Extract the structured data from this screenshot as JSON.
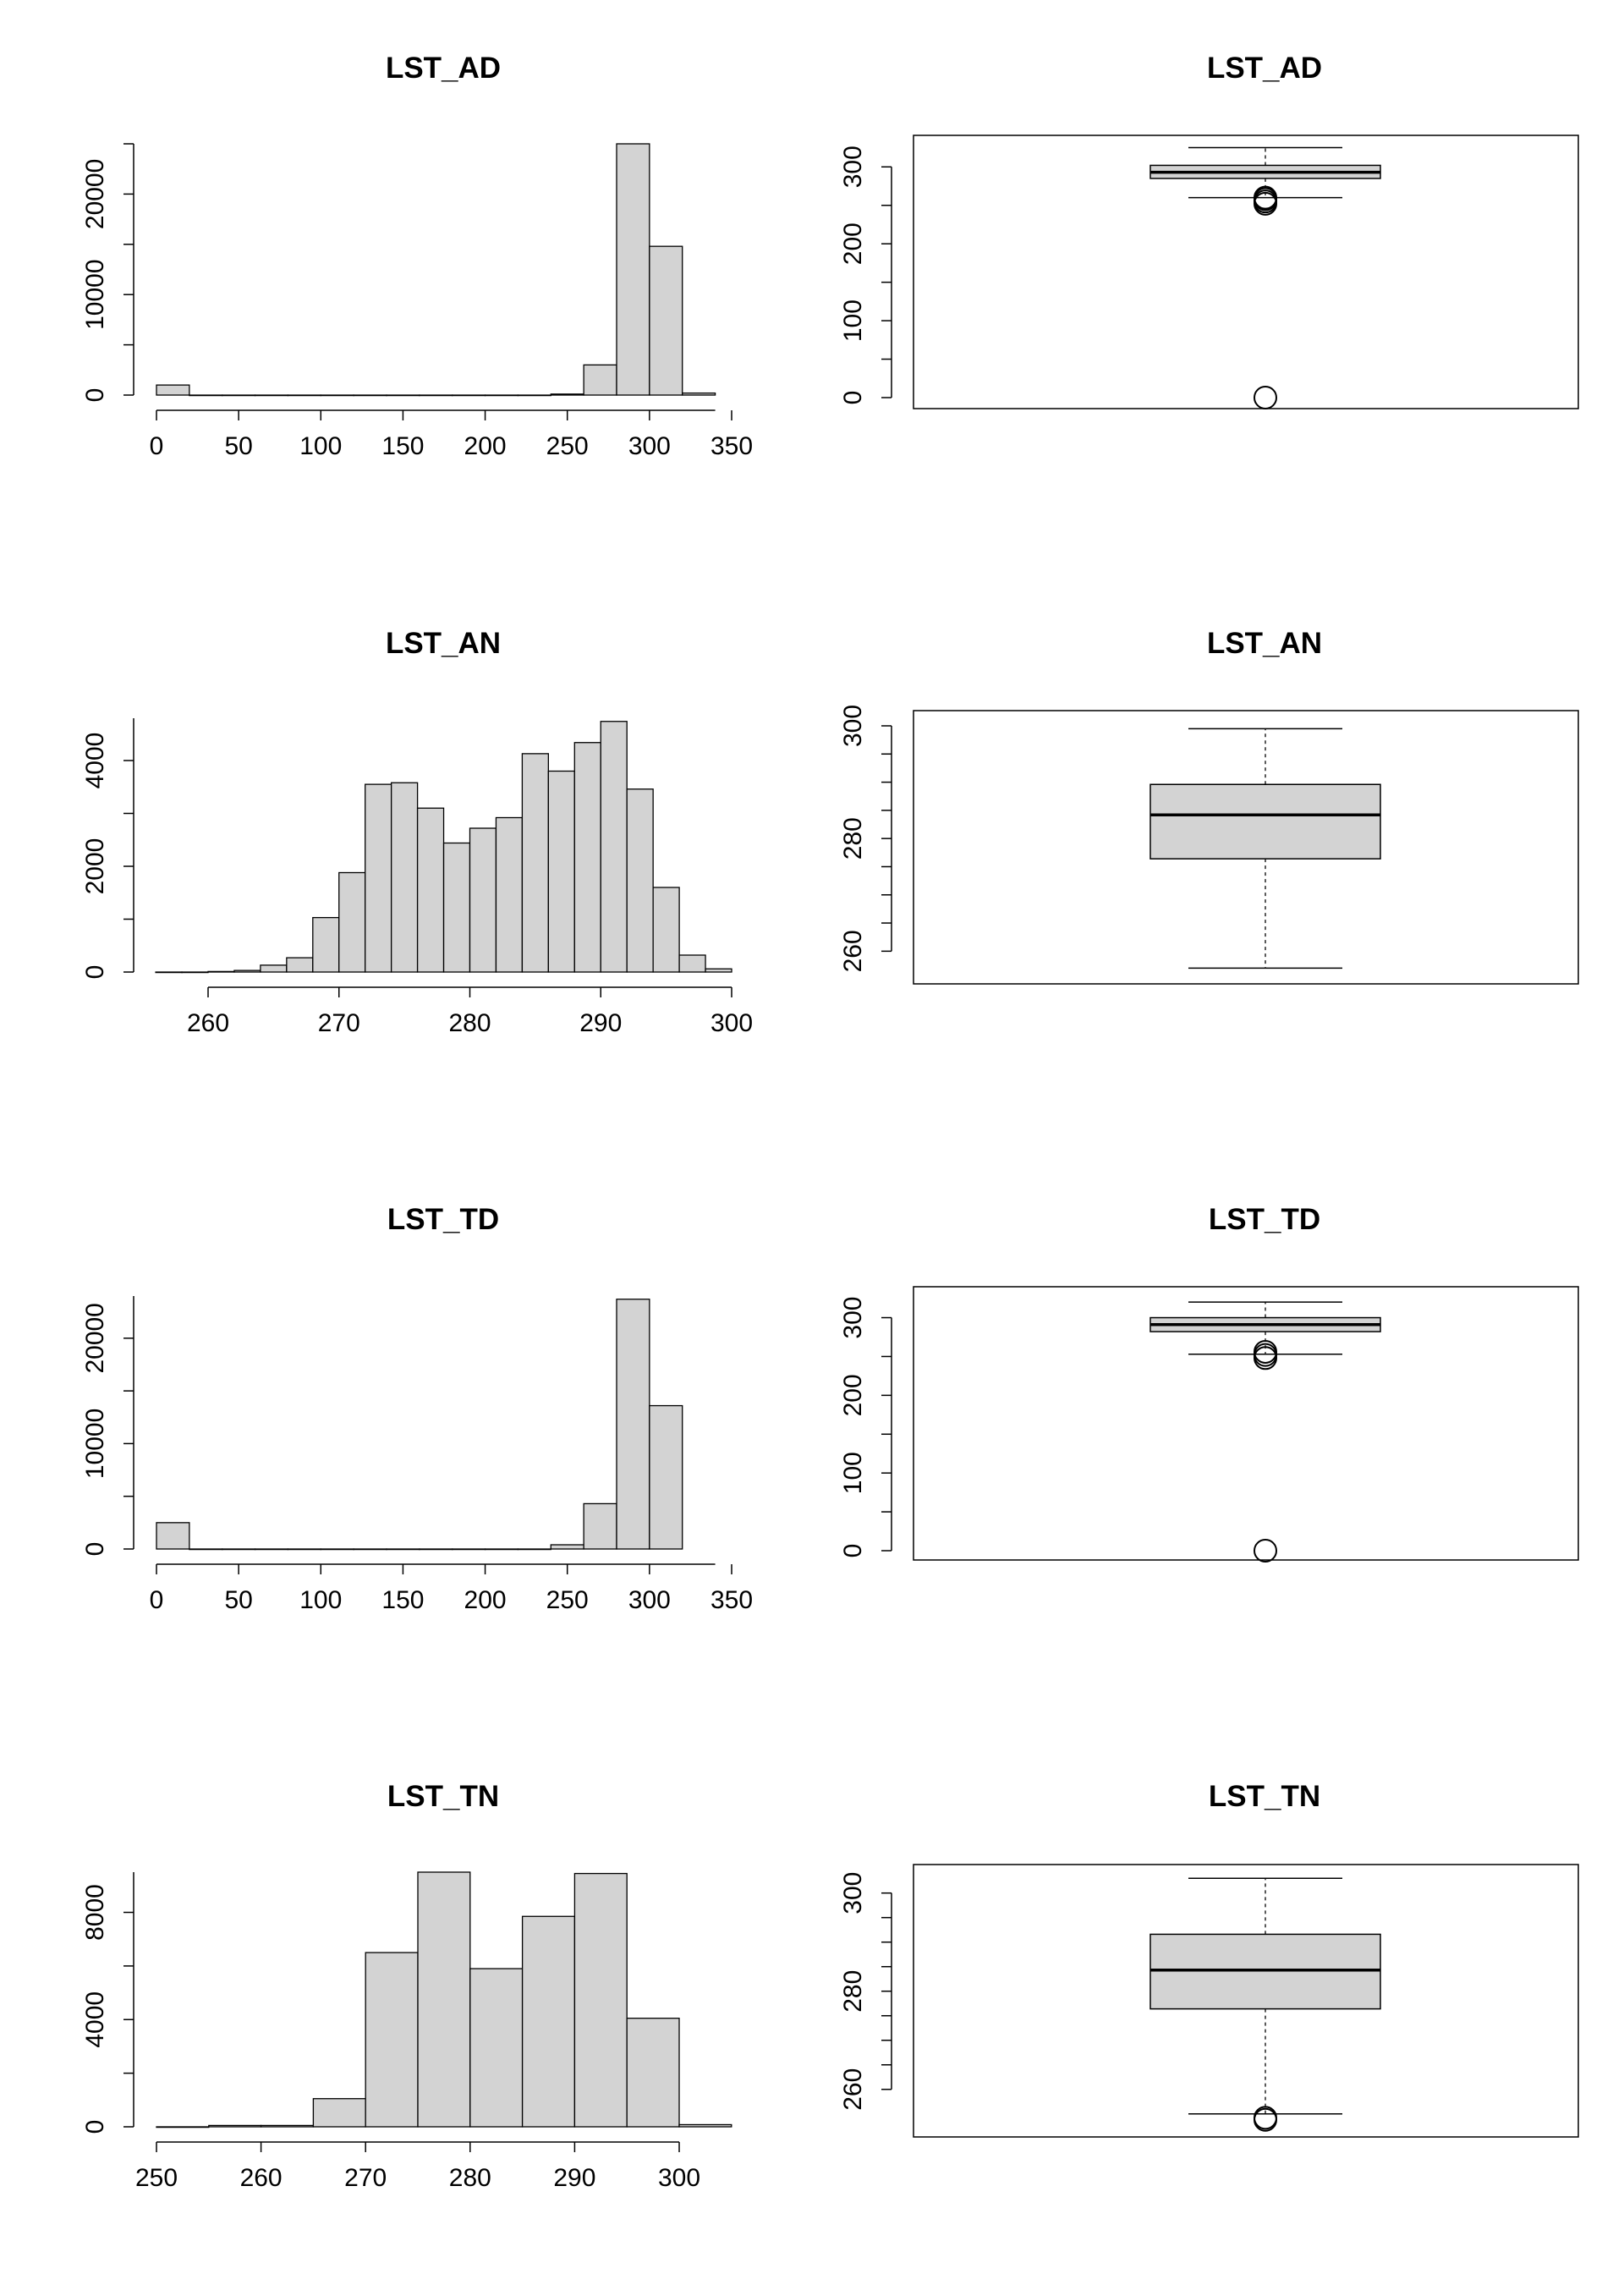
{
  "chart_data": [
    {
      "type": "histogram",
      "title": "LST_AD",
      "xlim": [
        0,
        350
      ],
      "ylim": [
        0,
        25000
      ],
      "x_ticks": [
        0,
        50,
        100,
        150,
        200,
        250,
        300,
        350
      ],
      "x_tick_labels": [
        "0",
        "50",
        "100",
        "150",
        "200",
        "250",
        "300",
        "350"
      ],
      "y_ticks": [
        0,
        10000,
        20000
      ],
      "y_tick_labels": [
        "0",
        "10000",
        "20000"
      ],
      "bin_width": 20,
      "bins": [
        {
          "x0": 0,
          "x1": 20,
          "count": 1000
        },
        {
          "x0": 20,
          "x1": 40,
          "count": 0
        },
        {
          "x0": 40,
          "x1": 60,
          "count": 0
        },
        {
          "x0": 60,
          "x1": 80,
          "count": 0
        },
        {
          "x0": 80,
          "x1": 100,
          "count": 0
        },
        {
          "x0": 100,
          "x1": 120,
          "count": 0
        },
        {
          "x0": 120,
          "x1": 140,
          "count": 0
        },
        {
          "x0": 140,
          "x1": 160,
          "count": 0
        },
        {
          "x0": 160,
          "x1": 180,
          "count": 0
        },
        {
          "x0": 180,
          "x1": 200,
          "count": 0
        },
        {
          "x0": 200,
          "x1": 220,
          "count": 0
        },
        {
          "x0": 220,
          "x1": 240,
          "count": 0
        },
        {
          "x0": 240,
          "x1": 260,
          "count": 100
        },
        {
          "x0": 260,
          "x1": 280,
          "count": 3000
        },
        {
          "x0": 280,
          "x1": 300,
          "count": 25000
        },
        {
          "x0": 300,
          "x1": 320,
          "count": 14800
        },
        {
          "x0": 320,
          "x1": 340,
          "count": 200
        }
      ],
      "ticks_extend": 340
    },
    {
      "type": "boxplot",
      "title": "LST_AD",
      "ylim": [
        0,
        330
      ],
      "y_ticks": [
        0,
        100,
        200,
        300
      ],
      "y_tick_labels": [
        "0",
        "100",
        "200",
        "300"
      ],
      "whisker_low": 260,
      "q1": 285,
      "median": 293,
      "q3": 302,
      "whisker_high": 325,
      "outliers": [
        0,
        252,
        255,
        258,
        260
      ]
    },
    {
      "type": "histogram",
      "title": "LST_AN",
      "xlim": [
        260,
        300
      ],
      "ylim": [
        0,
        4800
      ],
      "x_ticks": [
        260,
        270,
        280,
        290,
        300
      ],
      "x_tick_labels": [
        "260",
        "270",
        "280",
        "290",
        "300"
      ],
      "y_ticks": [
        0,
        2000,
        4000
      ],
      "y_tick_labels": [
        "0",
        "2000",
        "4000"
      ],
      "bin_width": 2,
      "bins": [
        {
          "x0": 256,
          "x1": 258,
          "count": 0
        },
        {
          "x0": 258,
          "x1": 260,
          "count": 0
        },
        {
          "x0": 260,
          "x1": 262,
          "count": 10
        },
        {
          "x0": 262,
          "x1": 264,
          "count": 30
        },
        {
          "x0": 264,
          "x1": 266,
          "count": 130
        },
        {
          "x0": 266,
          "x1": 268,
          "count": 270
        },
        {
          "x0": 268,
          "x1": 270,
          "count": 1030
        },
        {
          "x0": 270,
          "x1": 272,
          "count": 1880
        },
        {
          "x0": 272,
          "x1": 274,
          "count": 3550
        },
        {
          "x0": 274,
          "x1": 276,
          "count": 3580
        },
        {
          "x0": 276,
          "x1": 278,
          "count": 3100
        },
        {
          "x0": 278,
          "x1": 280,
          "count": 2440
        },
        {
          "x0": 280,
          "x1": 282,
          "count": 2720
        },
        {
          "x0": 282,
          "x1": 284,
          "count": 2920
        },
        {
          "x0": 284,
          "x1": 286,
          "count": 4130
        },
        {
          "x0": 286,
          "x1": 288,
          "count": 3800
        },
        {
          "x0": 288,
          "x1": 290,
          "count": 4340
        },
        {
          "x0": 290,
          "x1": 292,
          "count": 4740
        },
        {
          "x0": 292,
          "x1": 294,
          "count": 3460
        },
        {
          "x0": 294,
          "x1": 296,
          "count": 1600
        },
        {
          "x0": 296,
          "x1": 298,
          "count": 320
        },
        {
          "x0": 298,
          "x1": 300,
          "count": 60
        }
      ],
      "ticks_extend": 300
    },
    {
      "type": "boxplot",
      "title": "LST_AN",
      "ylim": [
        255.4,
        301.5
      ],
      "y_ticks": [
        260,
        270,
        280,
        290,
        300
      ],
      "y_tick_labels": [
        "260",
        "",
        "280",
        "",
        "300"
      ],
      "whisker_low": 257,
      "q1": 276.4,
      "median": 284.2,
      "q3": 289.6,
      "whisker_high": 299.5,
      "outliers": []
    },
    {
      "type": "histogram",
      "title": "LST_TD",
      "xlim": [
        0,
        350
      ],
      "ylim": [
        0,
        24000
      ],
      "x_ticks": [
        0,
        50,
        100,
        150,
        200,
        250,
        300,
        350
      ],
      "x_tick_labels": [
        "0",
        "50",
        "100",
        "150",
        "200",
        "250",
        "300",
        "350"
      ],
      "y_ticks": [
        0,
        10000,
        20000
      ],
      "y_tick_labels": [
        "0",
        "10000",
        "20000"
      ],
      "bin_width": 20,
      "bins": [
        {
          "x0": 0,
          "x1": 20,
          "count": 2500
        },
        {
          "x0": 20,
          "x1": 40,
          "count": 0
        },
        {
          "x0": 40,
          "x1": 60,
          "count": 0
        },
        {
          "x0": 60,
          "x1": 80,
          "count": 0
        },
        {
          "x0": 80,
          "x1": 100,
          "count": 0
        },
        {
          "x0": 100,
          "x1": 120,
          "count": 0
        },
        {
          "x0": 120,
          "x1": 140,
          "count": 0
        },
        {
          "x0": 140,
          "x1": 160,
          "count": 0
        },
        {
          "x0": 160,
          "x1": 180,
          "count": 0
        },
        {
          "x0": 180,
          "x1": 200,
          "count": 0
        },
        {
          "x0": 200,
          "x1": 220,
          "count": 0
        },
        {
          "x0": 220,
          "x1": 240,
          "count": 0
        },
        {
          "x0": 240,
          "x1": 260,
          "count": 400
        },
        {
          "x0": 260,
          "x1": 280,
          "count": 4300
        },
        {
          "x0": 280,
          "x1": 300,
          "count": 23700
        },
        {
          "x0": 300,
          "x1": 320,
          "count": 13600
        }
      ],
      "ticks_extend": 340
    },
    {
      "type": "boxplot",
      "title": "LST_TD",
      "ylim": [
        0,
        330
      ],
      "y_ticks": [
        0,
        100,
        200,
        300
      ],
      "y_tick_labels": [
        "0",
        "100",
        "200",
        "300"
      ],
      "whisker_low": 253,
      "q1": 282,
      "median": 291,
      "q3": 300,
      "whisker_high": 320,
      "outliers": [
        0,
        248,
        252,
        256
      ]
    },
    {
      "type": "histogram",
      "title": "LST_TN",
      "xlim": [
        250,
        300
      ],
      "ylim": [
        0,
        9500
      ],
      "x_ticks": [
        250,
        260,
        270,
        280,
        290,
        300
      ],
      "x_tick_labels": [
        "250",
        "260",
        "270",
        "280",
        "290",
        "300"
      ],
      "y_ticks": [
        0,
        4000,
        8000
      ],
      "y_tick_labels": [
        "0",
        "4000",
        "8000"
      ],
      "bin_width": 5,
      "bins": [
        {
          "x0": 250,
          "x1": 255,
          "count": 0
        },
        {
          "x0": 255,
          "x1": 260,
          "count": 50
        },
        {
          "x0": 260,
          "x1": 265,
          "count": 50
        },
        {
          "x0": 265,
          "x1": 270,
          "count": 1050
        },
        {
          "x0": 270,
          "x1": 275,
          "count": 6500
        },
        {
          "x0": 275,
          "x1": 280,
          "count": 9500
        },
        {
          "x0": 280,
          "x1": 285,
          "count": 5900
        },
        {
          "x0": 285,
          "x1": 290,
          "count": 7850
        },
        {
          "x0": 290,
          "x1": 295,
          "count": 9450
        },
        {
          "x0": 295,
          "x1": 300,
          "count": 4050
        },
        {
          "x0": 300,
          "x1": 305,
          "count": 80
        }
      ],
      "ticks_extend": 300
    },
    {
      "type": "boxplot",
      "title": "LST_TN",
      "ylim": [
        252.2,
        304.6
      ],
      "y_ticks": [
        260,
        270,
        280,
        290,
        300
      ],
      "y_tick_labels": [
        "260",
        "",
        "280",
        "",
        "300"
      ],
      "whisker_low": 255,
      "q1": 276.4,
      "median": 284.3,
      "q3": 291.6,
      "whisker_high": 303,
      "outliers": [
        253.8,
        254.2
      ]
    }
  ]
}
